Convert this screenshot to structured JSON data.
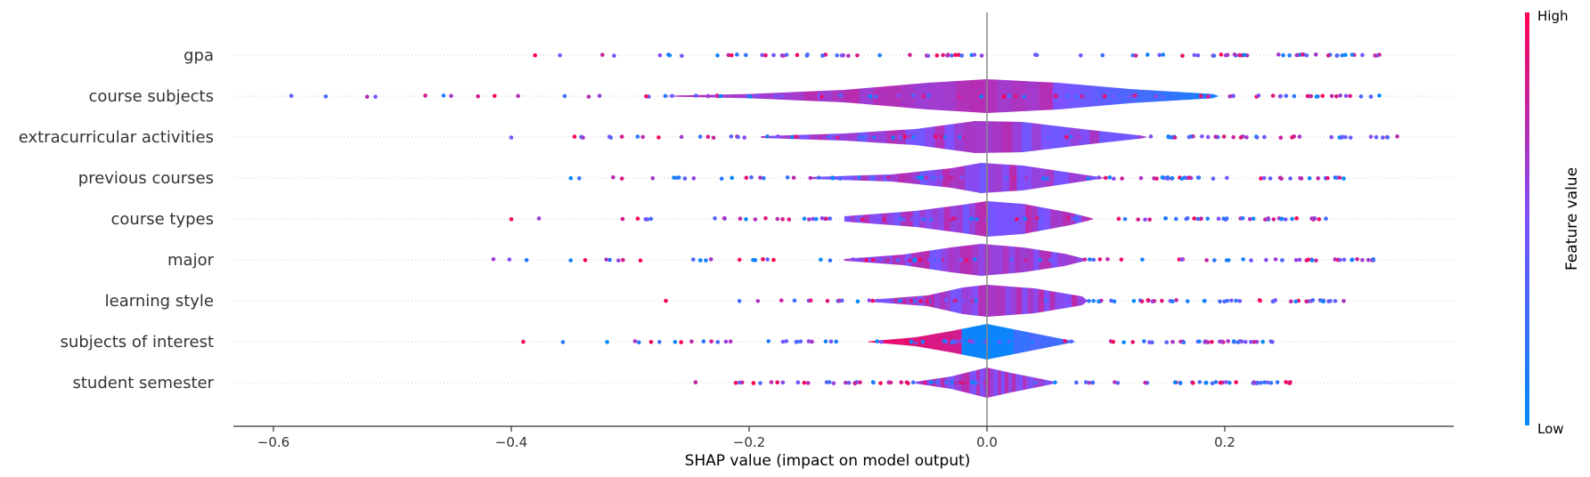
{
  "chart_data": {
    "type": "scatter",
    "subtype": "shap-summary-violin",
    "title": "",
    "xlabel": "SHAP value (impact on model output)",
    "xlim": [
      -0.64,
      0.39
    ],
    "xticks": [
      {
        "value": -0.6,
        "label": "−0.6"
      },
      {
        "value": -0.4,
        "label": "−0.4"
      },
      {
        "value": -0.2,
        "label": "−0.2"
      },
      {
        "value": 0.0,
        "label": "0.0"
      },
      {
        "value": 0.2,
        "label": "0.2"
      }
    ],
    "features": [
      {
        "name": "gpa",
        "min": -0.38,
        "max": 0.33,
        "peak": 0.0,
        "width": 0.0,
        "violin": []
      },
      {
        "name": "course subjects",
        "min": -0.585,
        "max": 0.33,
        "peak": -0.02,
        "width": 1.0,
        "violin": [
          [
            -0.27,
            0.02
          ],
          [
            -0.2,
            0.12
          ],
          [
            -0.12,
            0.35
          ],
          [
            -0.05,
            0.75
          ],
          [
            0.0,
            0.95
          ],
          [
            0.06,
            0.75
          ],
          [
            0.12,
            0.4
          ],
          [
            0.19,
            0.12
          ],
          [
            0.195,
            0.0
          ]
        ]
      },
      {
        "name": "extracurricular activities",
        "min": -0.4,
        "max": 0.345,
        "peak": -0.01,
        "width": 0.9,
        "violin": [
          [
            -0.19,
            0.05
          ],
          [
            -0.12,
            0.2
          ],
          [
            -0.06,
            0.45
          ],
          [
            -0.01,
            0.9
          ],
          [
            0.03,
            0.85
          ],
          [
            0.08,
            0.45
          ],
          [
            0.13,
            0.08
          ],
          [
            0.135,
            0.0
          ]
        ]
      },
      {
        "name": "previous courses",
        "min": -0.35,
        "max": 0.3,
        "peak": -0.01,
        "width": 0.85,
        "violin": [
          [
            -0.15,
            0.05
          ],
          [
            -0.08,
            0.2
          ],
          [
            -0.03,
            0.55
          ],
          [
            -0.005,
            0.85
          ],
          [
            0.03,
            0.7
          ],
          [
            0.07,
            0.3
          ],
          [
            0.095,
            0.05
          ],
          [
            0.1,
            0.0
          ]
        ]
      },
      {
        "name": "course types",
        "min": -0.4,
        "max": 0.285,
        "peak": 0.0,
        "width": 1.0,
        "violin": [
          [
            -0.12,
            0.15
          ],
          [
            -0.06,
            0.45
          ],
          [
            -0.02,
            0.8
          ],
          [
            0.0,
            1.0
          ],
          [
            0.03,
            0.85
          ],
          [
            0.07,
            0.35
          ],
          [
            0.085,
            0.1
          ],
          [
            0.09,
            0.0
          ]
        ]
      },
      {
        "name": "major",
        "min": -0.415,
        "max": 0.325,
        "peak": -0.005,
        "width": 0.9,
        "violin": [
          [
            -0.12,
            0.05
          ],
          [
            -0.07,
            0.3
          ],
          [
            -0.03,
            0.7
          ],
          [
            -0.005,
            0.9
          ],
          [
            0.03,
            0.7
          ],
          [
            0.065,
            0.35
          ],
          [
            0.08,
            0.1
          ],
          [
            0.085,
            0.0
          ]
        ]
      },
      {
        "name": "learning style",
        "min": -0.27,
        "max": 0.3,
        "peak": -0.005,
        "width": 0.9,
        "violin": [
          [
            -0.1,
            0.05
          ],
          [
            -0.05,
            0.3
          ],
          [
            -0.02,
            0.75
          ],
          [
            0.0,
            0.9
          ],
          [
            0.04,
            0.7
          ],
          [
            0.08,
            0.25
          ],
          [
            0.085,
            0.0
          ]
        ]
      },
      {
        "name": "subjects of interest",
        "min": -0.39,
        "max": 0.24,
        "peak": 0.0,
        "width": 1.0,
        "violin": [
          [
            -0.1,
            0.02
          ],
          [
            -0.06,
            0.25
          ],
          [
            -0.03,
            0.6
          ],
          [
            0.0,
            1.0
          ],
          [
            0.03,
            0.6
          ],
          [
            0.06,
            0.2
          ],
          [
            0.075,
            0.0
          ]
        ]
      },
      {
        "name": "student semester",
        "min": -0.245,
        "max": 0.255,
        "peak": 0.0,
        "width": 0.85,
        "violin": [
          [
            -0.06,
            0.05
          ],
          [
            -0.03,
            0.35
          ],
          [
            0.0,
            0.85
          ],
          [
            0.02,
            0.55
          ],
          [
            0.05,
            0.15
          ],
          [
            0.06,
            0.0
          ]
        ]
      }
    ],
    "colorbar": {
      "title": "Feature value",
      "high_label": "High",
      "low_label": "Low",
      "colors": {
        "low": "#008bfb",
        "mid": "#7c52ff",
        "high": "#ff0052"
      }
    },
    "zero_line": 0.0,
    "grid": "dotted-rows"
  }
}
